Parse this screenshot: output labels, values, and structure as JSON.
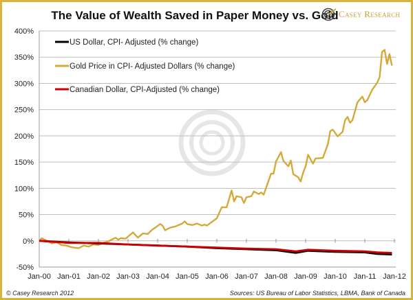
{
  "chart_data": {
    "type": "line",
    "title": "The Value of Wealth Saved in Paper Money vs. Gold",
    "xlabel": "",
    "ylabel": "",
    "x_ticks": [
      "Jan-00",
      "Jan-01",
      "Jan-02",
      "Jan-03",
      "Jan-04",
      "Jan-05",
      "Jan-06",
      "Jan-07",
      "Jan-08",
      "Jan-09",
      "Jan-10",
      "Jan-11",
      "Jan-12"
    ],
    "y_ticks": [
      "400%",
      "350%",
      "300%",
      "250%",
      "200%",
      "150%",
      "100%",
      "50%",
      "0%",
      "-50%"
    ],
    "ylim": [
      -50,
      400
    ],
    "xlim": [
      "2000-01",
      "2012-01"
    ],
    "grid": "horizontal",
    "legend_position": "top-left",
    "series": [
      {
        "name": "US Dollar, CPI- Adjusted (% change)",
        "color": "#000000",
        "points": [
          [
            "2000-01",
            0
          ],
          [
            "2001-01",
            -3
          ],
          [
            "2002-01",
            -5
          ],
          [
            "2003-01",
            -7
          ],
          [
            "2004-01",
            -9
          ],
          [
            "2005-01",
            -11
          ],
          [
            "2006-01",
            -14
          ],
          [
            "2007-01",
            -16
          ],
          [
            "2008-01",
            -18
          ],
          [
            "2008-09",
            -23
          ],
          [
            "2009-02",
            -19
          ],
          [
            "2010-01",
            -21
          ],
          [
            "2011-01",
            -22
          ],
          [
            "2011-06",
            -25
          ],
          [
            "2011-12",
            -26
          ]
        ]
      },
      {
        "name": "Gold Price in CPI- Adjusted Dollars (% change)",
        "color": "#d4a93a",
        "points": [
          [
            "2000-01",
            0
          ],
          [
            "2000-02",
            5
          ],
          [
            "2000-05",
            -2
          ],
          [
            "2000-06",
            -5
          ],
          [
            "2000-08",
            -3
          ],
          [
            "2000-10",
            -8
          ],
          [
            "2000-12",
            -9
          ],
          [
            "2001-02",
            -12
          ],
          [
            "2001-03",
            -13
          ],
          [
            "2001-05",
            -14
          ],
          [
            "2001-07",
            -9
          ],
          [
            "2001-09",
            -11
          ],
          [
            "2001-11",
            -7
          ],
          [
            "2002-01",
            -8
          ],
          [
            "2002-03",
            -4
          ],
          [
            "2002-05",
            -1
          ],
          [
            "2002-08",
            6
          ],
          [
            "2002-09",
            2
          ],
          [
            "2002-10",
            5
          ],
          [
            "2002-12",
            4
          ],
          [
            "2003-03",
            16
          ],
          [
            "2003-04",
            11
          ],
          [
            "2003-05",
            6
          ],
          [
            "2003-07",
            14
          ],
          [
            "2003-09",
            13
          ],
          [
            "2003-11",
            22
          ],
          [
            "2003-12",
            25
          ],
          [
            "2004-02",
            32
          ],
          [
            "2004-03",
            29
          ],
          [
            "2004-04",
            20
          ],
          [
            "2004-06",
            25
          ],
          [
            "2004-08",
            27
          ],
          [
            "2004-11",
            33
          ],
          [
            "2004-12",
            37
          ],
          [
            "2005-01",
            32
          ],
          [
            "2005-03",
            30
          ],
          [
            "2005-05",
            33
          ],
          [
            "2005-07",
            29
          ],
          [
            "2005-08",
            31
          ],
          [
            "2005-09",
            29
          ],
          [
            "2006-01",
            43
          ],
          [
            "2006-03",
            64
          ],
          [
            "2006-05",
            64
          ],
          [
            "2006-07",
            96
          ],
          [
            "2006-08",
            75
          ],
          [
            "2006-09",
            85
          ],
          [
            "2006-11",
            83
          ],
          [
            "2006-12",
            72
          ],
          [
            "2007-01",
            83
          ],
          [
            "2007-03",
            85
          ],
          [
            "2007-04",
            94
          ],
          [
            "2007-06",
            89
          ],
          [
            "2007-07",
            92
          ],
          [
            "2007-08",
            88
          ],
          [
            "2007-11",
            128
          ],
          [
            "2007-12",
            128
          ],
          [
            "2008-01",
            151
          ],
          [
            "2008-03",
            169
          ],
          [
            "2008-04",
            152
          ],
          [
            "2008-06",
            142
          ],
          [
            "2008-07",
            153
          ],
          [
            "2008-08",
            127
          ],
          [
            "2008-10",
            121
          ],
          [
            "2008-11",
            113
          ],
          [
            "2008-12",
            130
          ],
          [
            "2009-01",
            142
          ],
          [
            "2009-02",
            164
          ],
          [
            "2009-04",
            147
          ],
          [
            "2009-05",
            157
          ],
          [
            "2009-08",
            158
          ],
          [
            "2009-10",
            184
          ],
          [
            "2009-11",
            209
          ],
          [
            "2009-12",
            212
          ],
          [
            "2010-02",
            199
          ],
          [
            "2010-04",
            208
          ],
          [
            "2010-05",
            230
          ],
          [
            "2010-06",
            236
          ],
          [
            "2010-07",
            225
          ],
          [
            "2010-08",
            230
          ],
          [
            "2010-10",
            264
          ],
          [
            "2010-12",
            275
          ],
          [
            "2011-01",
            264
          ],
          [
            "2011-02",
            268
          ],
          [
            "2011-04",
            288
          ],
          [
            "2011-06",
            301
          ],
          [
            "2011-07",
            312
          ],
          [
            "2011-08",
            360
          ],
          [
            "2011-09",
            364
          ],
          [
            "2011-10",
            337
          ],
          [
            "2011-11",
            356
          ],
          [
            "2011-12",
            334
          ]
        ]
      },
      {
        "name": "Canadian Dollar, CPI-Adjusted (% change)",
        "color": "#cc0000",
        "points": [
          [
            "2000-01",
            0
          ],
          [
            "2001-01",
            -4
          ],
          [
            "2002-01",
            -4
          ],
          [
            "2003-01",
            -7
          ],
          [
            "2004-01",
            -9
          ],
          [
            "2005-01",
            -11
          ],
          [
            "2006-01",
            -13
          ],
          [
            "2007-01",
            -15
          ],
          [
            "2008-01",
            -16
          ],
          [
            "2008-09",
            -20
          ],
          [
            "2009-02",
            -17
          ],
          [
            "2010-01",
            -19
          ],
          [
            "2011-01",
            -20
          ],
          [
            "2011-06",
            -22
          ],
          [
            "2011-12",
            -23
          ]
        ]
      }
    ]
  },
  "logo": {
    "text": "Casey Research",
    "accent": "#c9a23a"
  },
  "footer": {
    "copyright": "© Casey Research 2012",
    "sources": "Sources: US Bureau of Labor Statistics, LBMA, Bank of Canada"
  },
  "colors": {
    "border": "#d9b43a",
    "grid": "#bdbdbd"
  }
}
